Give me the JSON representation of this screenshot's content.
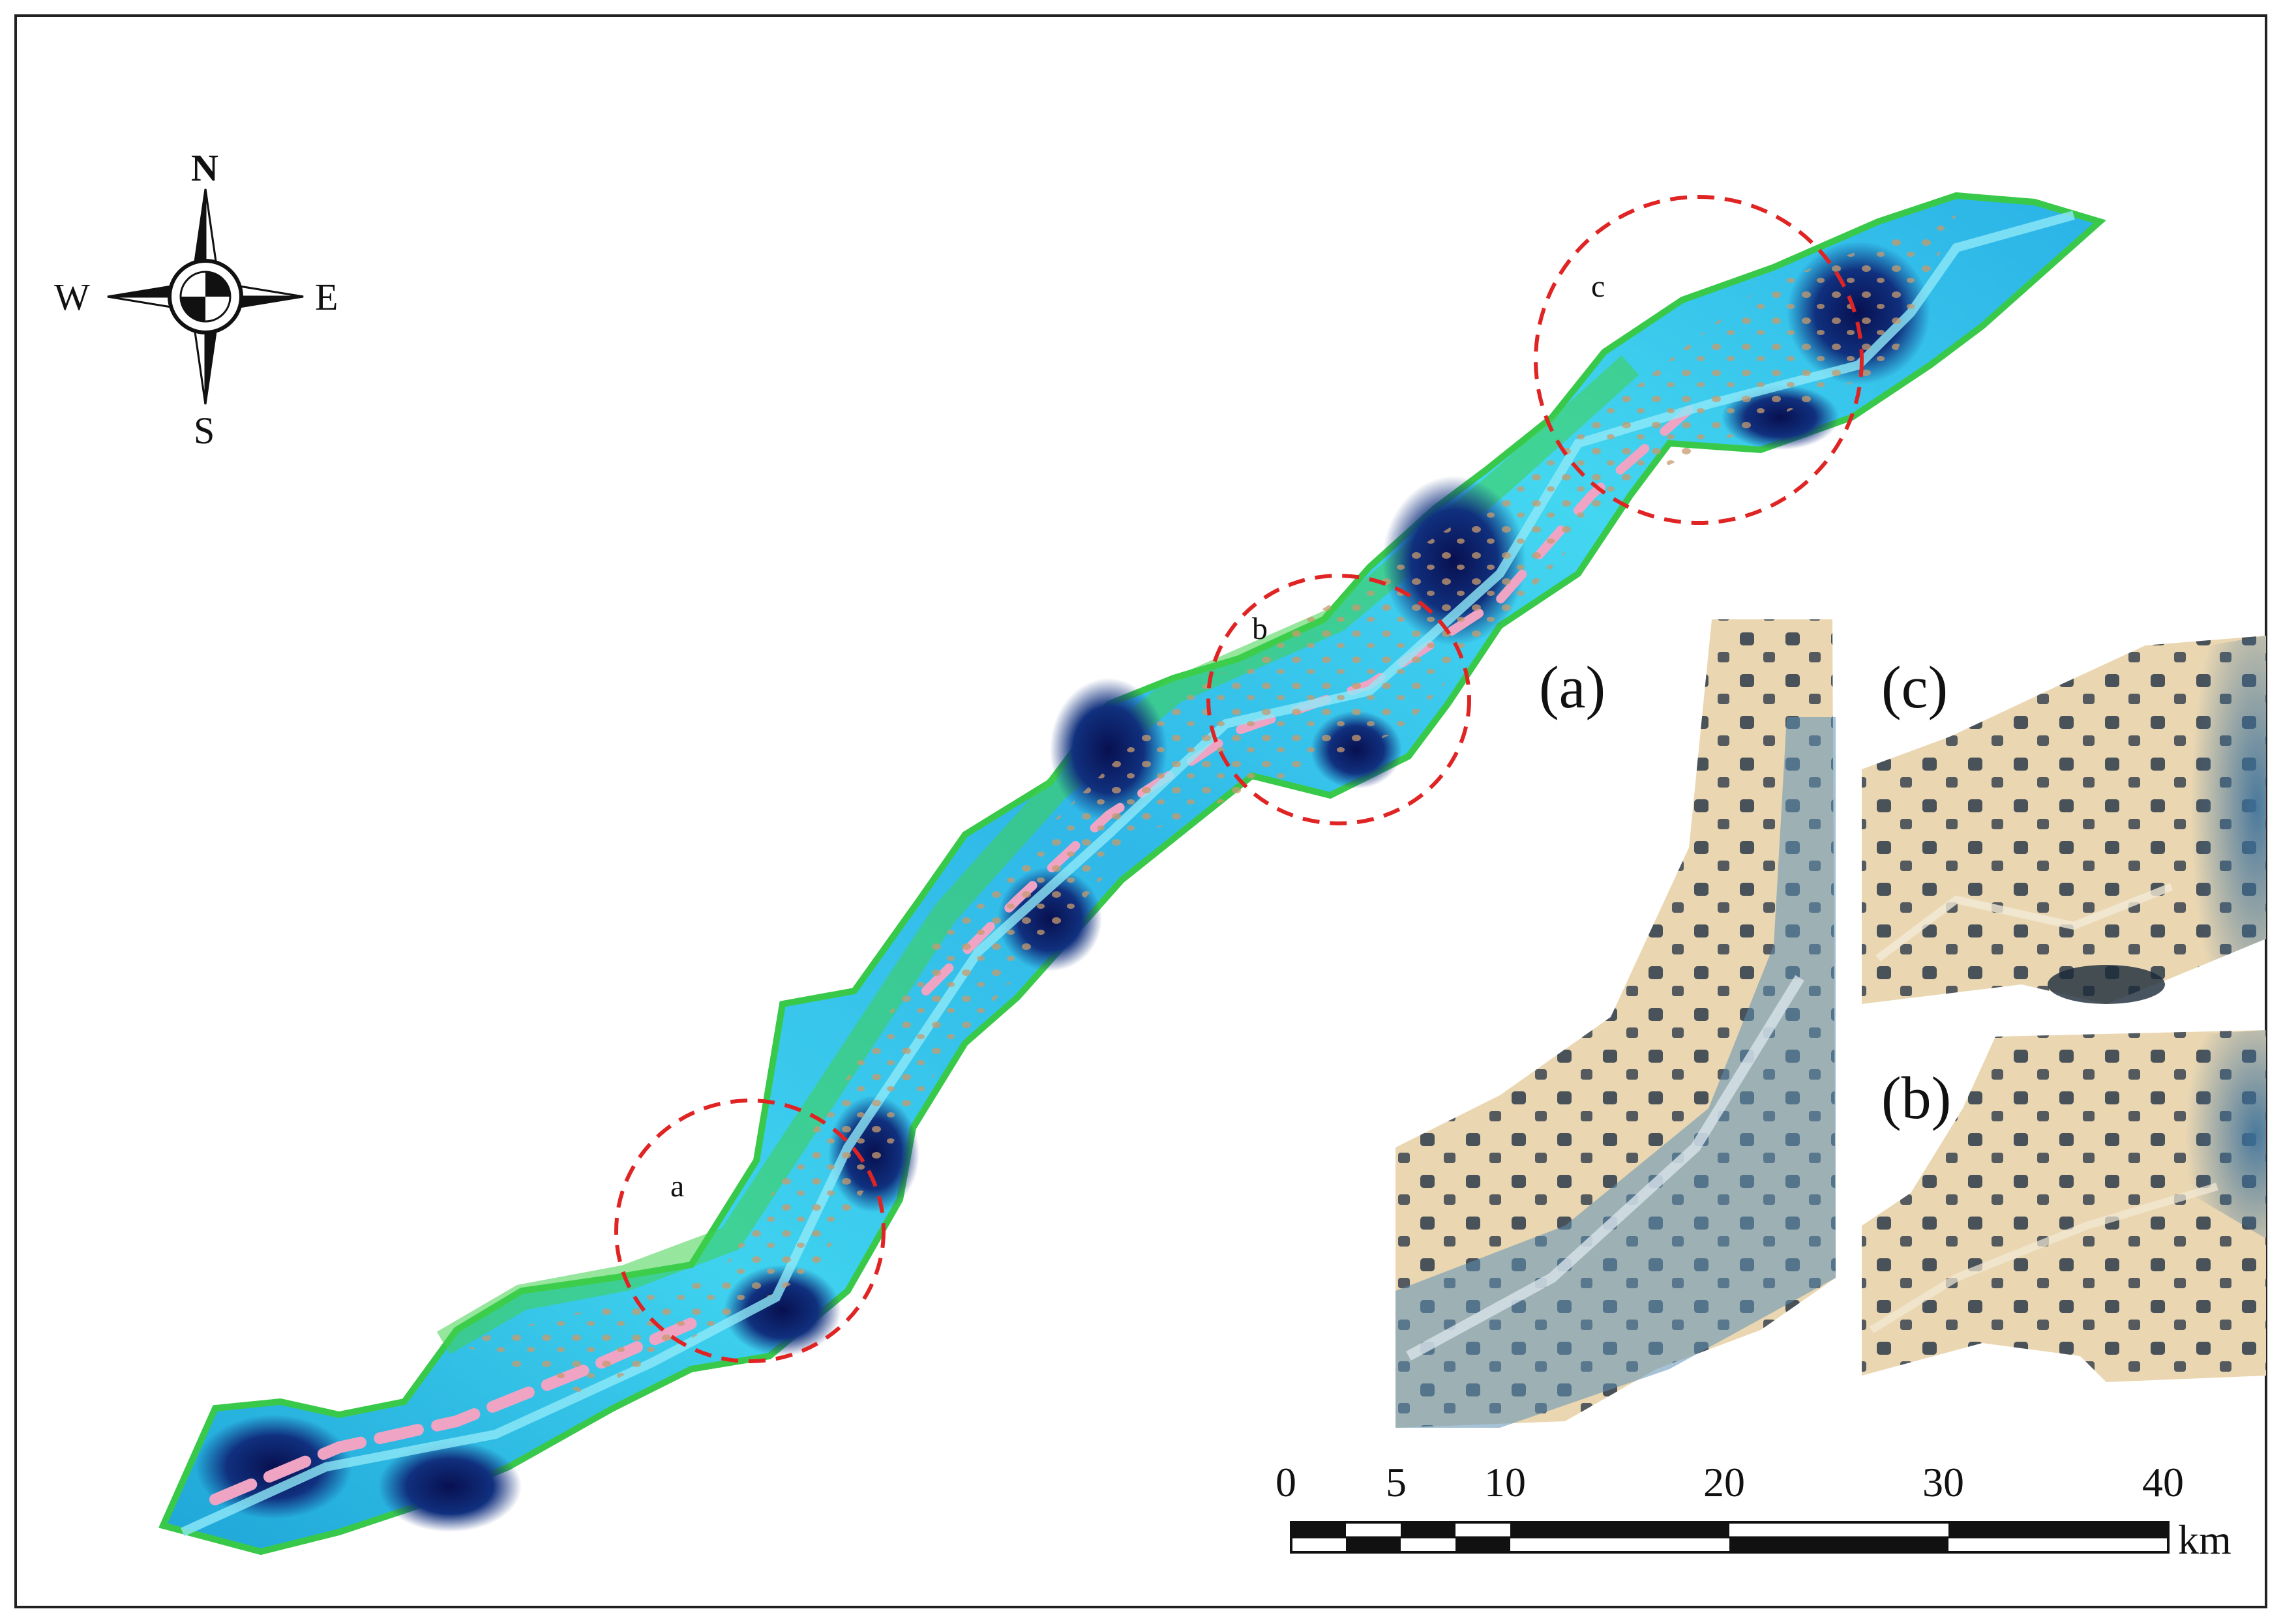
{
  "compass": {
    "north": "N",
    "south": "S",
    "east": "E",
    "west": "W"
  },
  "study_area_labels": [
    "a",
    "b",
    "c"
  ],
  "insets": [
    {
      "key": "a",
      "label": "(a)"
    },
    {
      "key": "c",
      "label": "(c)"
    },
    {
      "key": "b",
      "label": "(b)"
    }
  ],
  "scale_bar": {
    "ticks": [
      "0",
      "5",
      "10",
      "20",
      "30",
      "40"
    ],
    "unit": "km"
  },
  "colors": {
    "river_cyan": "#3fd2ef",
    "river_deep": "#0a1e66",
    "vegetation_green": "#35d24a",
    "sand_pink": "#f0a4c4",
    "highlight_circle": "#e02424",
    "inset_tan": "#ead7b2",
    "inset_dark": "#2c3d4d"
  }
}
